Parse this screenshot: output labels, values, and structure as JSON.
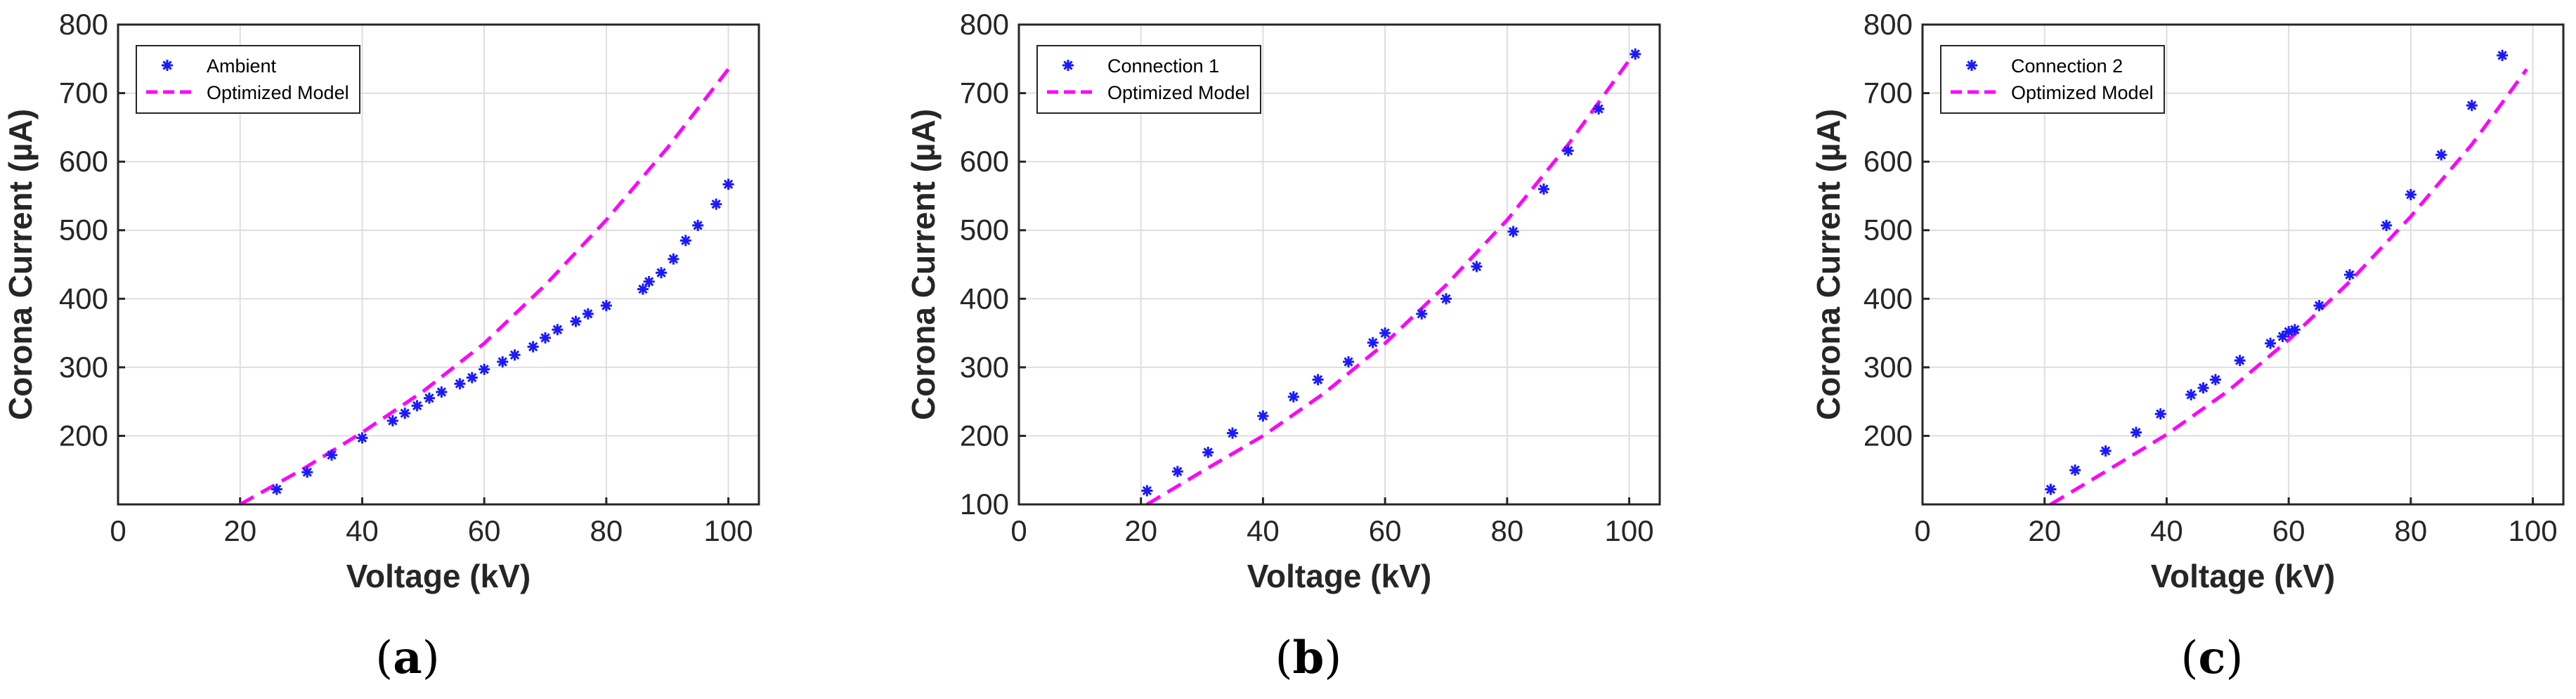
{
  "chart_data": [
    {
      "type": "scatter",
      "panel_label": "a",
      "title": "",
      "xlabel": "Voltage (kV)",
      "ylabel": "Corona Current (µA)",
      "xlim": [
        0,
        105
      ],
      "ylim": [
        100,
        800
      ],
      "xticks": [
        0,
        20,
        40,
        60,
        80,
        100
      ],
      "yticks": [
        200,
        300,
        400,
        500,
        600,
        700,
        800
      ],
      "grid": true,
      "legend_position": "top-left",
      "series": [
        {
          "name": "Ambient",
          "style": "markers",
          "x": [
            26,
            31,
            35,
            40,
            45,
            47,
            49,
            51,
            53,
            56,
            58,
            60,
            63,
            65,
            68,
            70,
            72,
            75,
            77,
            80,
            86,
            87,
            89,
            91,
            93,
            95,
            98,
            100
          ],
          "y": [
            122,
            147,
            172,
            197,
            222,
            233,
            244,
            255,
            264,
            276,
            285,
            297,
            308,
            318,
            330,
            343,
            355,
            367,
            378,
            390,
            414,
            425,
            438,
            458,
            485,
            507,
            538,
            567
          ]
        },
        {
          "name": "Optimized Model",
          "style": "dashed",
          "x": [
            20,
            30,
            40,
            50,
            60,
            70,
            80,
            90,
            100
          ],
          "y": [
            100,
            150,
            205,
            265,
            335,
            420,
            515,
            620,
            735
          ]
        }
      ]
    },
    {
      "type": "scatter",
      "panel_label": "b",
      "title": "",
      "xlabel": "Voltage (kV)",
      "ylabel": "Corona Current (µA)",
      "xlim": [
        0,
        105
      ],
      "ylim": [
        100,
        800
      ],
      "xticks": [
        0,
        20,
        40,
        60,
        80,
        100
      ],
      "yticks": [
        100,
        200,
        300,
        400,
        500,
        600,
        700,
        800
      ],
      "grid": true,
      "legend_position": "top-left",
      "series": [
        {
          "name": "Connection 1",
          "style": "markers",
          "x": [
            21,
            26,
            31,
            35,
            40,
            45,
            49,
            54,
            58,
            60,
            66,
            70,
            75,
            81,
            86,
            90,
            95,
            101
          ],
          "y": [
            120,
            148,
            176,
            204,
            229,
            257,
            282,
            308,
            336,
            350,
            378,
            400,
            447,
            498,
            560,
            616,
            677,
            757
          ]
        },
        {
          "name": "Optimized Model",
          "style": "dashed",
          "x": [
            21,
            30,
            40,
            50,
            60,
            70,
            80,
            90,
            100
          ],
          "y": [
            100,
            148,
            200,
            262,
            335,
            420,
            515,
            625,
            748
          ]
        }
      ]
    },
    {
      "type": "scatter",
      "panel_label": "c",
      "title": "",
      "xlabel": "Voltage (kV)",
      "ylabel": "Corona Current (µA)",
      "xlim": [
        0,
        105
      ],
      "ylim": [
        100,
        800
      ],
      "xticks": [
        0,
        20,
        40,
        60,
        80,
        100
      ],
      "yticks": [
        200,
        300,
        400,
        500,
        600,
        700,
        800
      ],
      "grid": true,
      "legend_position": "top-left",
      "series": [
        {
          "name": "Connection 2",
          "style": "markers",
          "x": [
            21,
            25,
            30,
            35,
            39,
            44,
            46,
            48,
            52,
            57,
            59,
            60,
            61,
            65,
            70,
            76,
            80,
            85,
            90,
            95
          ],
          "y": [
            122,
            150,
            178,
            205,
            232,
            260,
            270,
            282,
            310,
            335,
            345,
            352,
            355,
            390,
            435,
            507,
            552,
            610,
            682,
            755
          ]
        },
        {
          "name": "Optimized Model",
          "style": "dashed",
          "x": [
            21,
            30,
            40,
            50,
            60,
            70,
            80,
            90,
            99
          ],
          "y": [
            100,
            148,
            202,
            265,
            340,
            425,
            520,
            625,
            735
          ]
        }
      ]
    }
  ]
}
